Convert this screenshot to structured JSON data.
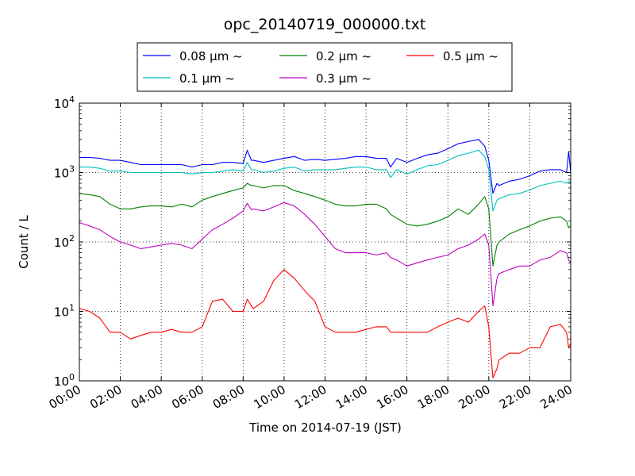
{
  "chart_data": {
    "type": "line",
    "title": "opc_20140719_000000.txt",
    "xlabel": "Time on 2014-07-19 (JST)",
    "ylabel": "Count / L",
    "x_unit": "hour of day (JST)",
    "xlim": [
      0,
      24
    ],
    "ylim": [
      1,
      10000
    ],
    "yscale": "log",
    "grid": true,
    "legend_position": "top",
    "x_tick_labels": [
      "00:00",
      "02:00",
      "04:00",
      "06:00",
      "08:00",
      "10:00",
      "12:00",
      "14:00",
      "16:00",
      "18:00",
      "20:00",
      "22:00",
      "24:00"
    ],
    "x_tick_values": [
      0,
      2,
      4,
      6,
      8,
      10,
      12,
      14,
      16,
      18,
      20,
      22,
      24
    ],
    "y_tick_values": [
      1,
      10,
      100,
      1000,
      10000
    ],
    "y_tick_labels": [
      {
        "base": "10",
        "exp": "0"
      },
      {
        "base": "10",
        "exp": "1"
      },
      {
        "base": "10",
        "exp": "2"
      },
      {
        "base": "10",
        "exp": "3"
      },
      {
        "base": "10",
        "exp": "4"
      }
    ],
    "series": [
      {
        "name": "0.08 μm ~",
        "color": "#0000ff",
        "x": [
          0,
          0.5,
          1,
          1.5,
          2,
          2.5,
          3,
          3.5,
          4,
          4.5,
          5,
          5.5,
          6,
          6.5,
          7,
          7.5,
          8,
          8.2,
          8.4,
          8.5,
          9,
          9.5,
          10,
          10.5,
          11,
          11.5,
          12,
          12.5,
          13,
          13.5,
          14,
          14.5,
          15,
          15.2,
          15.5,
          16,
          16.5,
          17,
          17.5,
          18,
          18.5,
          19,
          19.5,
          19.8,
          20.0,
          20.2,
          20.4,
          20.5,
          21,
          21.5,
          22,
          22.5,
          23,
          23.5,
          23.8,
          23.9,
          24
        ],
        "y": [
          1650,
          1650,
          1600,
          1500,
          1500,
          1400,
          1300,
          1300,
          1300,
          1300,
          1300,
          1200,
          1300,
          1300,
          1400,
          1400,
          1350,
          2100,
          1500,
          1500,
          1400,
          1500,
          1600,
          1700,
          1500,
          1550,
          1500,
          1550,
          1600,
          1700,
          1700,
          1600,
          1600,
          1200,
          1600,
          1400,
          1600,
          1800,
          1900,
          2200,
          2600,
          2800,
          3000,
          2400,
          1500,
          500,
          700,
          650,
          750,
          800,
          900,
          1050,
          1100,
          1100,
          1000,
          2000,
          1000
        ]
      },
      {
        "name": "0.1 μm ~",
        "color": "#00bfbf",
        "x": [
          0,
          0.5,
          1,
          1.5,
          2,
          2.5,
          3,
          3.5,
          4,
          4.5,
          5,
          5.5,
          6,
          6.5,
          7,
          7.5,
          8,
          8.2,
          8.4,
          8.5,
          9,
          9.5,
          10,
          10.5,
          11,
          11.5,
          12,
          12.5,
          13,
          13.5,
          14,
          14.5,
          15,
          15.2,
          15.5,
          16,
          16.5,
          17,
          17.5,
          18,
          18.5,
          19,
          19.5,
          19.8,
          20.0,
          20.2,
          20.4,
          20.5,
          21,
          21.5,
          22,
          22.5,
          23,
          23.5,
          23.8,
          23.9,
          24
        ],
        "y": [
          1200,
          1200,
          1150,
          1050,
          1050,
          1000,
          1000,
          1000,
          1000,
          1000,
          1000,
          950,
          1000,
          1000,
          1050,
          1100,
          1050,
          1400,
          1100,
          1100,
          1000,
          1050,
          1150,
          1200,
          1050,
          1100,
          1100,
          1100,
          1150,
          1200,
          1200,
          1100,
          1100,
          850,
          1100,
          950,
          1100,
          1250,
          1300,
          1500,
          1750,
          1900,
          2100,
          1700,
          1100,
          280,
          400,
          420,
          480,
          500,
          560,
          650,
          700,
          750,
          700,
          750,
          700
        ]
      },
      {
        "name": "0.2 μm ~",
        "color": "#008000",
        "x": [
          0,
          0.5,
          1,
          1.5,
          2,
          2.5,
          3,
          3.5,
          4,
          4.5,
          5,
          5.5,
          6,
          6.5,
          7,
          7.5,
          8,
          8.2,
          8.4,
          8.5,
          9,
          9.5,
          10,
          10.5,
          11,
          11.5,
          12,
          12.5,
          13,
          13.5,
          14,
          14.5,
          15,
          15.2,
          15.5,
          16,
          16.5,
          17,
          17.5,
          18,
          18.5,
          19,
          19.5,
          19.8,
          20.0,
          20.2,
          20.4,
          20.5,
          21,
          21.5,
          22,
          22.5,
          23,
          23.5,
          23.8,
          23.9,
          24
        ],
        "y": [
          500,
          480,
          450,
          350,
          300,
          300,
          320,
          330,
          330,
          320,
          350,
          320,
          400,
          450,
          500,
          550,
          600,
          700,
          650,
          650,
          600,
          650,
          650,
          550,
          500,
          450,
          400,
          350,
          330,
          330,
          350,
          350,
          300,
          250,
          220,
          180,
          170,
          180,
          200,
          230,
          300,
          250,
          350,
          450,
          300,
          45,
          90,
          100,
          130,
          150,
          170,
          200,
          220,
          230,
          200,
          160,
          170
        ]
      },
      {
        "name": "0.3 μm ~",
        "color": "#bf00bf",
        "x": [
          0,
          0.5,
          1,
          1.5,
          2,
          2.5,
          3,
          3.5,
          4,
          4.5,
          5,
          5.5,
          6,
          6.5,
          7,
          7.5,
          8,
          8.2,
          8.4,
          8.5,
          9,
          9.5,
          10,
          10.5,
          11,
          11.5,
          12,
          12.5,
          13,
          13.5,
          14,
          14.5,
          15,
          15.2,
          15.5,
          16,
          16.5,
          17,
          17.5,
          18,
          18.5,
          19,
          19.5,
          19.8,
          20.0,
          20.2,
          20.4,
          20.5,
          21,
          21.5,
          22,
          22.5,
          23,
          23.5,
          23.8,
          23.9,
          24
        ],
        "y": [
          190,
          170,
          150,
          120,
          100,
          90,
          80,
          85,
          90,
          95,
          90,
          80,
          110,
          150,
          180,
          220,
          280,
          360,
          290,
          300,
          280,
          320,
          370,
          330,
          250,
          180,
          120,
          80,
          70,
          70,
          70,
          65,
          70,
          60,
          55,
          45,
          50,
          55,
          60,
          65,
          80,
          90,
          110,
          130,
          90,
          12,
          30,
          35,
          40,
          45,
          45,
          55,
          60,
          75,
          70,
          55,
          50
        ]
      },
      {
        "name": "0.5 μm ~",
        "color": "#ff0000",
        "x": [
          0,
          0.5,
          1,
          1.5,
          2,
          2.5,
          3,
          3.5,
          4,
          4.5,
          5,
          5.5,
          6,
          6.5,
          7,
          7.5,
          8,
          8.2,
          8.4,
          8.5,
          9,
          9.5,
          10,
          10.5,
          11,
          11.5,
          12,
          12.5,
          13,
          13.5,
          14,
          14.5,
          15,
          15.2,
          15.5,
          16,
          16.5,
          17,
          17.5,
          18,
          18.5,
          19,
          19.5,
          19.8,
          20.0,
          20.2,
          20.4,
          20.5,
          21,
          21.5,
          22,
          22.5,
          23,
          23.5,
          23.8,
          23.9,
          24
        ],
        "y": [
          11,
          10,
          8,
          5,
          5,
          4,
          4.5,
          5,
          5,
          5.5,
          5,
          5,
          6,
          14,
          15,
          10,
          10,
          15,
          12,
          11,
          14,
          28,
          40,
          30,
          20,
          14,
          6,
          5,
          5,
          5,
          5.5,
          6,
          6,
          5,
          5,
          5,
          5,
          5,
          6,
          7,
          8,
          7,
          10,
          12,
          6,
          1.1,
          1.5,
          2,
          2.5,
          2.5,
          3,
          3,
          6,
          6.5,
          5,
          3,
          3.5
        ]
      }
    ]
  }
}
